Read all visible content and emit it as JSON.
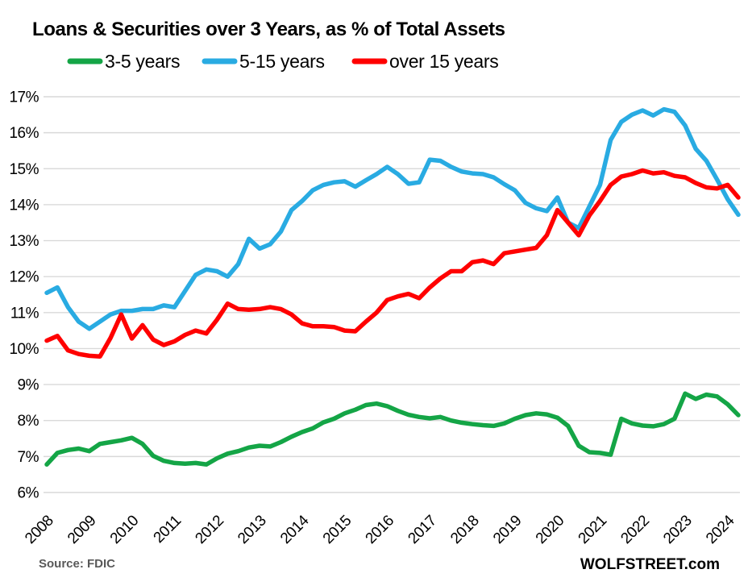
{
  "title": "Loans & Securities over 3 Years, as % of Total Assets",
  "source_note": "Source: FDIC",
  "branding": "WOLFSTREET.com",
  "colors": {
    "green": "#14A546",
    "blue": "#29ABE2",
    "red": "#FF0000",
    "gridline": "#D9D9D9",
    "text": "#000000",
    "source_text": "#595959"
  },
  "chart_data": {
    "type": "line",
    "title": "Loans & Securities over 3 Years, as % of Total Assets",
    "xlabel": "",
    "ylabel": "",
    "ylim": [
      6,
      17
    ],
    "y_tick_step": 1,
    "y_tick_suffix": "%",
    "grid": "horizontal",
    "legend_position": "top",
    "x_frequency": "quarterly",
    "x_tick_labels": [
      "2008",
      "2009",
      "2010",
      "2011",
      "2012",
      "2013",
      "2014",
      "2015",
      "2016",
      "2017",
      "2018",
      "2019",
      "2020",
      "2021",
      "2022",
      "2023",
      "2024"
    ],
    "n_points": 66,
    "series": [
      {
        "name": "3-5 years",
        "color": "#14A546",
        "values": [
          6.78,
          7.1,
          7.18,
          7.22,
          7.15,
          7.35,
          7.4,
          7.45,
          7.52,
          7.35,
          7.02,
          6.88,
          6.82,
          6.8,
          6.82,
          6.78,
          6.95,
          7.08,
          7.15,
          7.25,
          7.3,
          7.28,
          7.4,
          7.55,
          7.68,
          7.78,
          7.95,
          8.05,
          8.2,
          8.3,
          8.43,
          8.47,
          8.4,
          8.27,
          8.16,
          8.1,
          8.06,
          8.1,
          8.0,
          7.94,
          7.9,
          7.87,
          7.85,
          7.92,
          8.05,
          8.15,
          8.2,
          8.17,
          8.08,
          7.85,
          7.3,
          7.12,
          7.1,
          7.05,
          8.05,
          7.92,
          7.86,
          7.84,
          7.9,
          8.05,
          8.75,
          8.6,
          8.72,
          8.67,
          8.45,
          8.15
        ]
      },
      {
        "name": "5-15 years",
        "color": "#29ABE2",
        "values": [
          11.55,
          11.7,
          11.15,
          10.75,
          10.55,
          10.75,
          10.95,
          11.05,
          11.05,
          11.1,
          11.1,
          11.2,
          11.15,
          11.6,
          12.05,
          12.2,
          12.15,
          12.0,
          12.35,
          13.05,
          12.78,
          12.9,
          13.25,
          13.85,
          14.1,
          14.4,
          14.55,
          14.62,
          14.65,
          14.5,
          14.68,
          14.85,
          15.05,
          14.85,
          14.58,
          14.62,
          15.25,
          15.22,
          15.05,
          14.92,
          14.87,
          14.85,
          14.76,
          14.57,
          14.4,
          14.05,
          13.9,
          13.82,
          14.2,
          13.5,
          13.35,
          13.95,
          14.55,
          15.8,
          16.3,
          16.5,
          16.62,
          16.48,
          16.65,
          16.58,
          16.2,
          15.55,
          15.22,
          14.7,
          14.15,
          13.72
        ]
      },
      {
        "name": "over 15 years",
        "color": "#FF0000",
        "values": [
          10.22,
          10.35,
          9.95,
          9.85,
          9.8,
          9.78,
          10.3,
          10.95,
          10.28,
          10.65,
          10.25,
          10.1,
          10.2,
          10.38,
          10.5,
          10.42,
          10.8,
          11.25,
          11.1,
          11.08,
          11.1,
          11.15,
          11.1,
          10.95,
          10.7,
          10.62,
          10.62,
          10.6,
          10.5,
          10.48,
          10.75,
          11.0,
          11.35,
          11.45,
          11.52,
          11.4,
          11.7,
          11.95,
          12.15,
          12.15,
          12.4,
          12.45,
          12.35,
          12.65,
          12.7,
          12.75,
          12.8,
          13.15,
          13.85,
          13.5,
          13.15,
          13.7,
          14.1,
          14.55,
          14.78,
          14.85,
          14.95,
          14.87,
          14.9,
          14.8,
          14.76,
          14.6,
          14.48,
          14.45,
          14.55,
          14.2
        ]
      }
    ]
  }
}
